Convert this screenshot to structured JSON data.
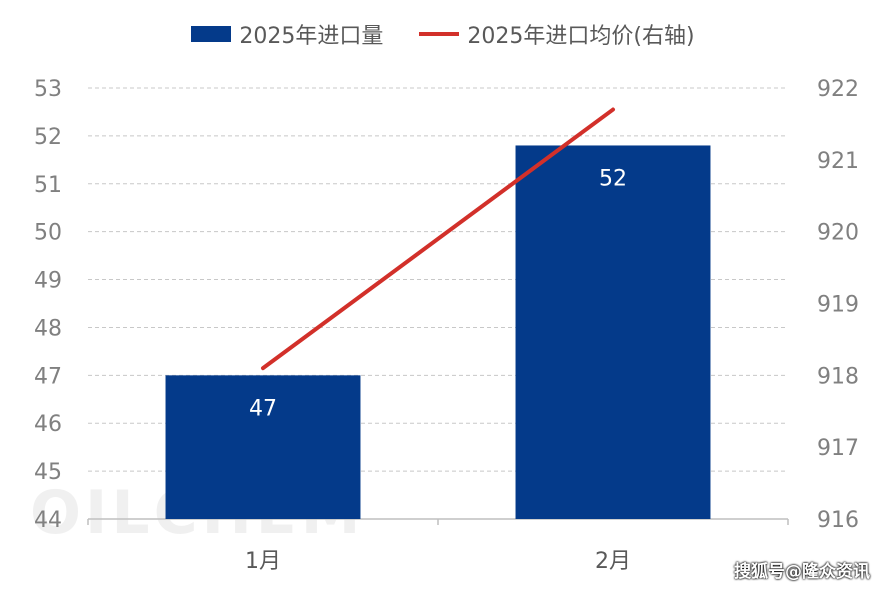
{
  "chart_data": {
    "type": "bar",
    "categories": [
      "1月",
      "2月"
    ],
    "series": [
      {
        "name": "2025年进口量",
        "kind": "bar",
        "axis": "left",
        "values": [
          47,
          51.8
        ],
        "labels": [
          "47",
          "52"
        ],
        "color": "#043A8A"
      },
      {
        "name": "2025年进口均价(右轴)",
        "kind": "line",
        "axis": "right",
        "values": [
          918.1,
          921.7
        ],
        "color": "#D2302A"
      }
    ],
    "y_left": {
      "min": 44,
      "max": 53,
      "ticks": [
        "44",
        "45",
        "46",
        "47",
        "48",
        "49",
        "50",
        "51",
        "52",
        "53"
      ]
    },
    "y_right": {
      "min": 916,
      "max": 922,
      "ticks": [
        "916",
        "917",
        "918",
        "919",
        "920",
        "921",
        "922"
      ]
    },
    "grid": true,
    "legend_position": "top"
  },
  "watermark": "OILCHEM",
  "source_mark": "搜狐号@隆众资讯"
}
